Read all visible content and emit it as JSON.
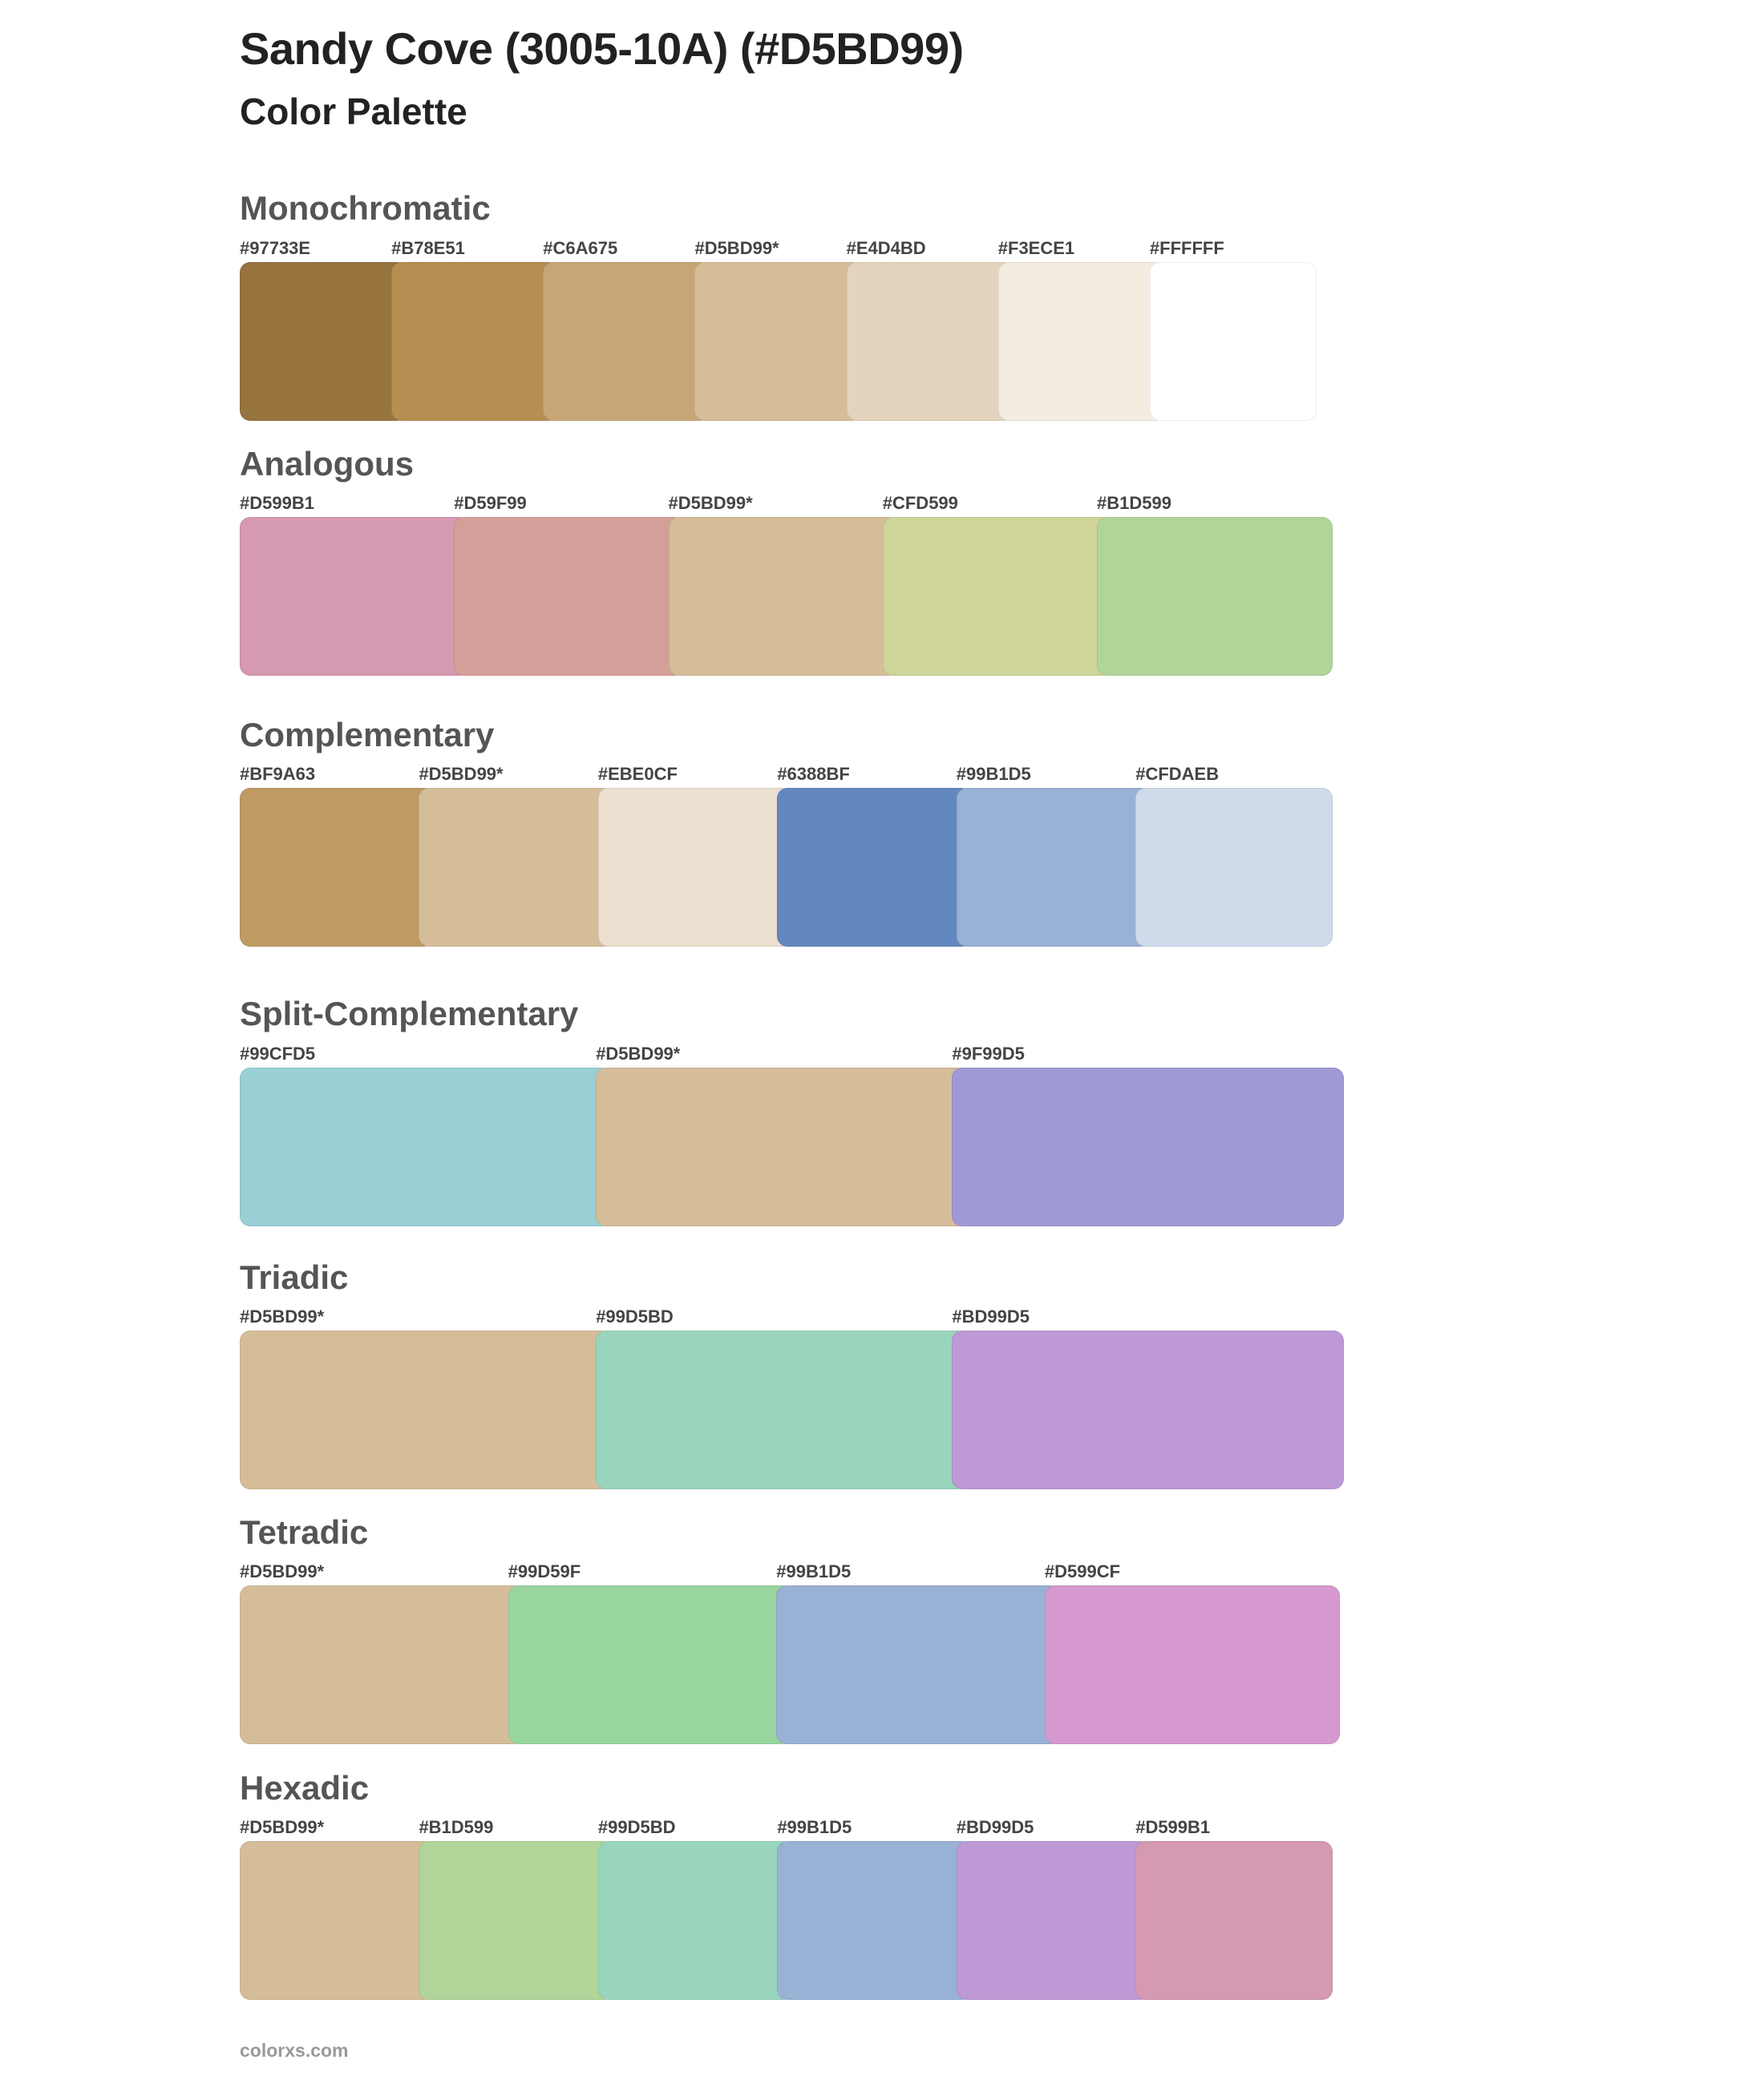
{
  "title": "Sandy Cove (3005-10A) (#D5BD99)",
  "subtitle": "Color Palette",
  "sections": [
    {
      "name": "Monochromatic",
      "swatches": [
        {
          "label": "#97733E",
          "color": "#97733E"
        },
        {
          "label": "#B78E51",
          "color": "#B78E51"
        },
        {
          "label": "#C6A675",
          "color": "#C6A675"
        },
        {
          "label": "#D5BD99*",
          "color": "#D5BD99"
        },
        {
          "label": "#E4D4BD",
          "color": "#E4D4BD"
        },
        {
          "label": "#F3ECE1",
          "color": "#F3ECE1"
        },
        {
          "label": "#FFFFFF",
          "color": "#FFFFFF"
        }
      ]
    },
    {
      "name": "Analogous",
      "swatches": [
        {
          "label": "#D599B1",
          "color": "#D599B1"
        },
        {
          "label": "#D59F99",
          "color": "#D59F99"
        },
        {
          "label": "#D5BD99*",
          "color": "#D5BD99"
        },
        {
          "label": "#CFD599",
          "color": "#CFD599"
        },
        {
          "label": "#B1D599",
          "color": "#B1D599"
        }
      ]
    },
    {
      "name": "Complementary",
      "swatches": [
        {
          "label": "#BF9A63",
          "color": "#BF9A63"
        },
        {
          "label": "#D5BD99*",
          "color": "#D5BD99"
        },
        {
          "label": "#EBE0CF",
          "color": "#EBE0CF"
        },
        {
          "label": "#6388BF",
          "color": "#6388BF"
        },
        {
          "label": "#99B1D5",
          "color": "#99B1D5"
        },
        {
          "label": "#CFDAEB",
          "color": "#CFDAEB"
        }
      ]
    },
    {
      "name": "Split-Complementary",
      "swatches": [
        {
          "label": "#99CFD5",
          "color": "#99CFD5"
        },
        {
          "label": "#D5BD99*",
          "color": "#D5BD99"
        },
        {
          "label": "#9F99D5",
          "color": "#9F99D5"
        }
      ]
    },
    {
      "name": "Triadic",
      "swatches": [
        {
          "label": "#D5BD99*",
          "color": "#D5BD99"
        },
        {
          "label": "#99D5BD",
          "color": "#99D5BD"
        },
        {
          "label": "#BD99D5",
          "color": "#BD99D5"
        }
      ]
    },
    {
      "name": "Tetradic",
      "swatches": [
        {
          "label": "#D5BD99*",
          "color": "#D5BD99"
        },
        {
          "label": "#99D59F",
          "color": "#99D59F"
        },
        {
          "label": "#99B1D5",
          "color": "#99B1D5"
        },
        {
          "label": "#D599CF",
          "color": "#D599CF"
        }
      ]
    },
    {
      "name": "Hexadic",
      "swatches": [
        {
          "label": "#D5BD99*",
          "color": "#D5BD99"
        },
        {
          "label": "#B1D599",
          "color": "#B1D599"
        },
        {
          "label": "#99D5BD",
          "color": "#99D5BD"
        },
        {
          "label": "#99B1D5",
          "color": "#99B1D5"
        },
        {
          "label": "#BD99D5",
          "color": "#BD99D5"
        },
        {
          "label": "#D599B1",
          "color": "#D599B1"
        }
      ]
    }
  ],
  "footer": "colorxs.com"
}
